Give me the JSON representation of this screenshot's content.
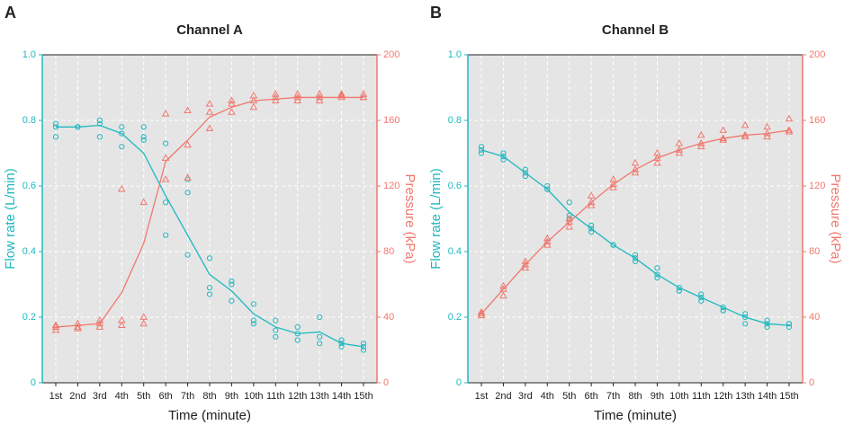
{
  "chart_data": [
    {
      "type": "line",
      "panel": "A",
      "title": "Channel A",
      "xlabel": "Time (minute)",
      "ylabel": "Flow rate (L/min)",
      "y2label": "Pressure (kPa)",
      "categories": [
        "1st",
        "2nd",
        "3rd",
        "4th",
        "5th",
        "6th",
        "7th",
        "8th",
        "9th",
        "10th",
        "11th",
        "12th",
        "13th",
        "14th",
        "15th"
      ],
      "ylim": [
        0,
        1
      ],
      "yticks": [
        0,
        0.2,
        0.4,
        0.6,
        0.8,
        {
          "value": 1,
          "label": "1.0"
        }
      ],
      "y2lim": [
        0,
        200
      ],
      "y2ticks": [
        0,
        40,
        80,
        120,
        160,
        200
      ],
      "grid": true,
      "series": [
        {
          "style": "line",
          "color": "#1fb8c0",
          "values": [
            0.78,
            0.78,
            0.785,
            0.76,
            0.7,
            0.57,
            0.45,
            0.33,
            0.28,
            0.21,
            0.17,
            0.15,
            0.155,
            0.12,
            0.11
          ]
        },
        {
          "style": "points",
          "marker": "circle",
          "color": "#1fb8c0",
          "values": [
            0.79,
            0.78,
            0.8,
            0.78,
            0.78,
            0.73,
            0.62,
            0.38,
            0.31,
            0.24,
            0.19,
            0.17,
            0.2,
            0.13,
            0.12
          ]
        },
        {
          "style": "points",
          "marker": "circle",
          "color": "#1fb8c0",
          "values": [
            0.78,
            0.78,
            0.79,
            0.76,
            0.75,
            0.55,
            0.58,
            0.29,
            0.3,
            0.19,
            0.16,
            0.15,
            0.14,
            0.12,
            0.11
          ]
        },
        {
          "style": "points",
          "marker": "circle",
          "color": "#1fb8c0",
          "values": [
            0.75,
            0.78,
            0.75,
            0.72,
            0.74,
            0.45,
            0.39,
            0.27,
            0.25,
            0.18,
            0.14,
            0.13,
            0.12,
            0.11,
            0.1
          ]
        },
        {
          "style": "line",
          "axis": "y2",
          "color": "#f0786e",
          "values": [
            34,
            35,
            36,
            55,
            85,
            135,
            148,
            162,
            168,
            172,
            173,
            174,
            174,
            174,
            174
          ]
        },
        {
          "style": "points",
          "axis": "y2",
          "marker": "triangle",
          "color": "#f0786e",
          "values": [
            35,
            36,
            38,
            38,
            40,
            164,
            166,
            170,
            172,
            175,
            176,
            176,
            176,
            176,
            176
          ]
        },
        {
          "style": "points",
          "axis": "y2",
          "marker": "triangle",
          "color": "#f0786e",
          "values": [
            34,
            34,
            36,
            35,
            36,
            137,
            145,
            165,
            170,
            172,
            174,
            174,
            174,
            175,
            174
          ]
        },
        {
          "style": "points",
          "axis": "y2",
          "marker": "triangle",
          "color": "#f0786e",
          "values": [
            32,
            33,
            34,
            118,
            110,
            124,
            125,
            155,
            165,
            168,
            172,
            172,
            172,
            174,
            174
          ]
        }
      ]
    },
    {
      "type": "line",
      "panel": "B",
      "title": "Channel B",
      "xlabel": "Time (minute)",
      "ylabel": "Flow rate (L/min)",
      "y2label": "Pressure (kPa)",
      "categories": [
        "1st",
        "2nd",
        "3rd",
        "4th",
        "5th",
        "6th",
        "7th",
        "8th",
        "9th",
        "10th",
        "11th",
        "12th",
        "13th",
        "14th",
        "15th"
      ],
      "ylim": [
        0,
        1
      ],
      "yticks": [
        0,
        0.2,
        0.4,
        0.6,
        0.8,
        {
          "value": 1,
          "label": "1.0"
        }
      ],
      "y2lim": [
        0,
        200
      ],
      "y2ticks": [
        0,
        40,
        80,
        120,
        160,
        200
      ],
      "grid": true,
      "series": [
        {
          "style": "line",
          "color": "#1fb8c0",
          "values": [
            0.71,
            0.69,
            0.64,
            0.59,
            0.52,
            0.47,
            0.42,
            0.38,
            0.33,
            0.29,
            0.26,
            0.23,
            0.2,
            0.18,
            0.175
          ]
        },
        {
          "style": "points",
          "marker": "circle",
          "color": "#1fb8c0",
          "values": [
            0.72,
            0.7,
            0.65,
            0.6,
            0.55,
            0.48,
            0.42,
            0.39,
            0.35,
            0.29,
            0.27,
            0.23,
            0.21,
            0.19,
            0.18
          ]
        },
        {
          "style": "points",
          "marker": "circle",
          "color": "#1fb8c0",
          "values": [
            0.71,
            0.69,
            0.64,
            0.59,
            0.51,
            0.47,
            0.42,
            0.38,
            0.33,
            0.28,
            0.26,
            0.22,
            0.2,
            0.18,
            0.18
          ]
        },
        {
          "style": "points",
          "marker": "circle",
          "color": "#1fb8c0",
          "values": [
            0.7,
            0.68,
            0.63,
            0.59,
            0.5,
            0.46,
            0.42,
            0.37,
            0.32,
            0.28,
            0.25,
            0.22,
            0.18,
            0.17,
            0.17
          ]
        },
        {
          "style": "line",
          "axis": "y2",
          "color": "#f0786e",
          "values": [
            42,
            57,
            72,
            86,
            98,
            110,
            121,
            130,
            137,
            142,
            146,
            149,
            151,
            152,
            154
          ]
        },
        {
          "style": "points",
          "axis": "y2",
          "marker": "triangle",
          "color": "#f0786e",
          "values": [
            43,
            59,
            74,
            88,
            100,
            114,
            124,
            134,
            140,
            146,
            151,
            154,
            157,
            156,
            161
          ]
        },
        {
          "style": "points",
          "axis": "y2",
          "marker": "triangle",
          "color": "#f0786e",
          "values": [
            42,
            57,
            72,
            86,
            98,
            110,
            121,
            130,
            137,
            142,
            146,
            149,
            151,
            152,
            154
          ]
        },
        {
          "style": "points",
          "axis": "y2",
          "marker": "triangle",
          "color": "#f0786e",
          "values": [
            41,
            53,
            70,
            84,
            95,
            108,
            119,
            128,
            134,
            140,
            144,
            148,
            150,
            150,
            153
          ]
        }
      ]
    }
  ]
}
